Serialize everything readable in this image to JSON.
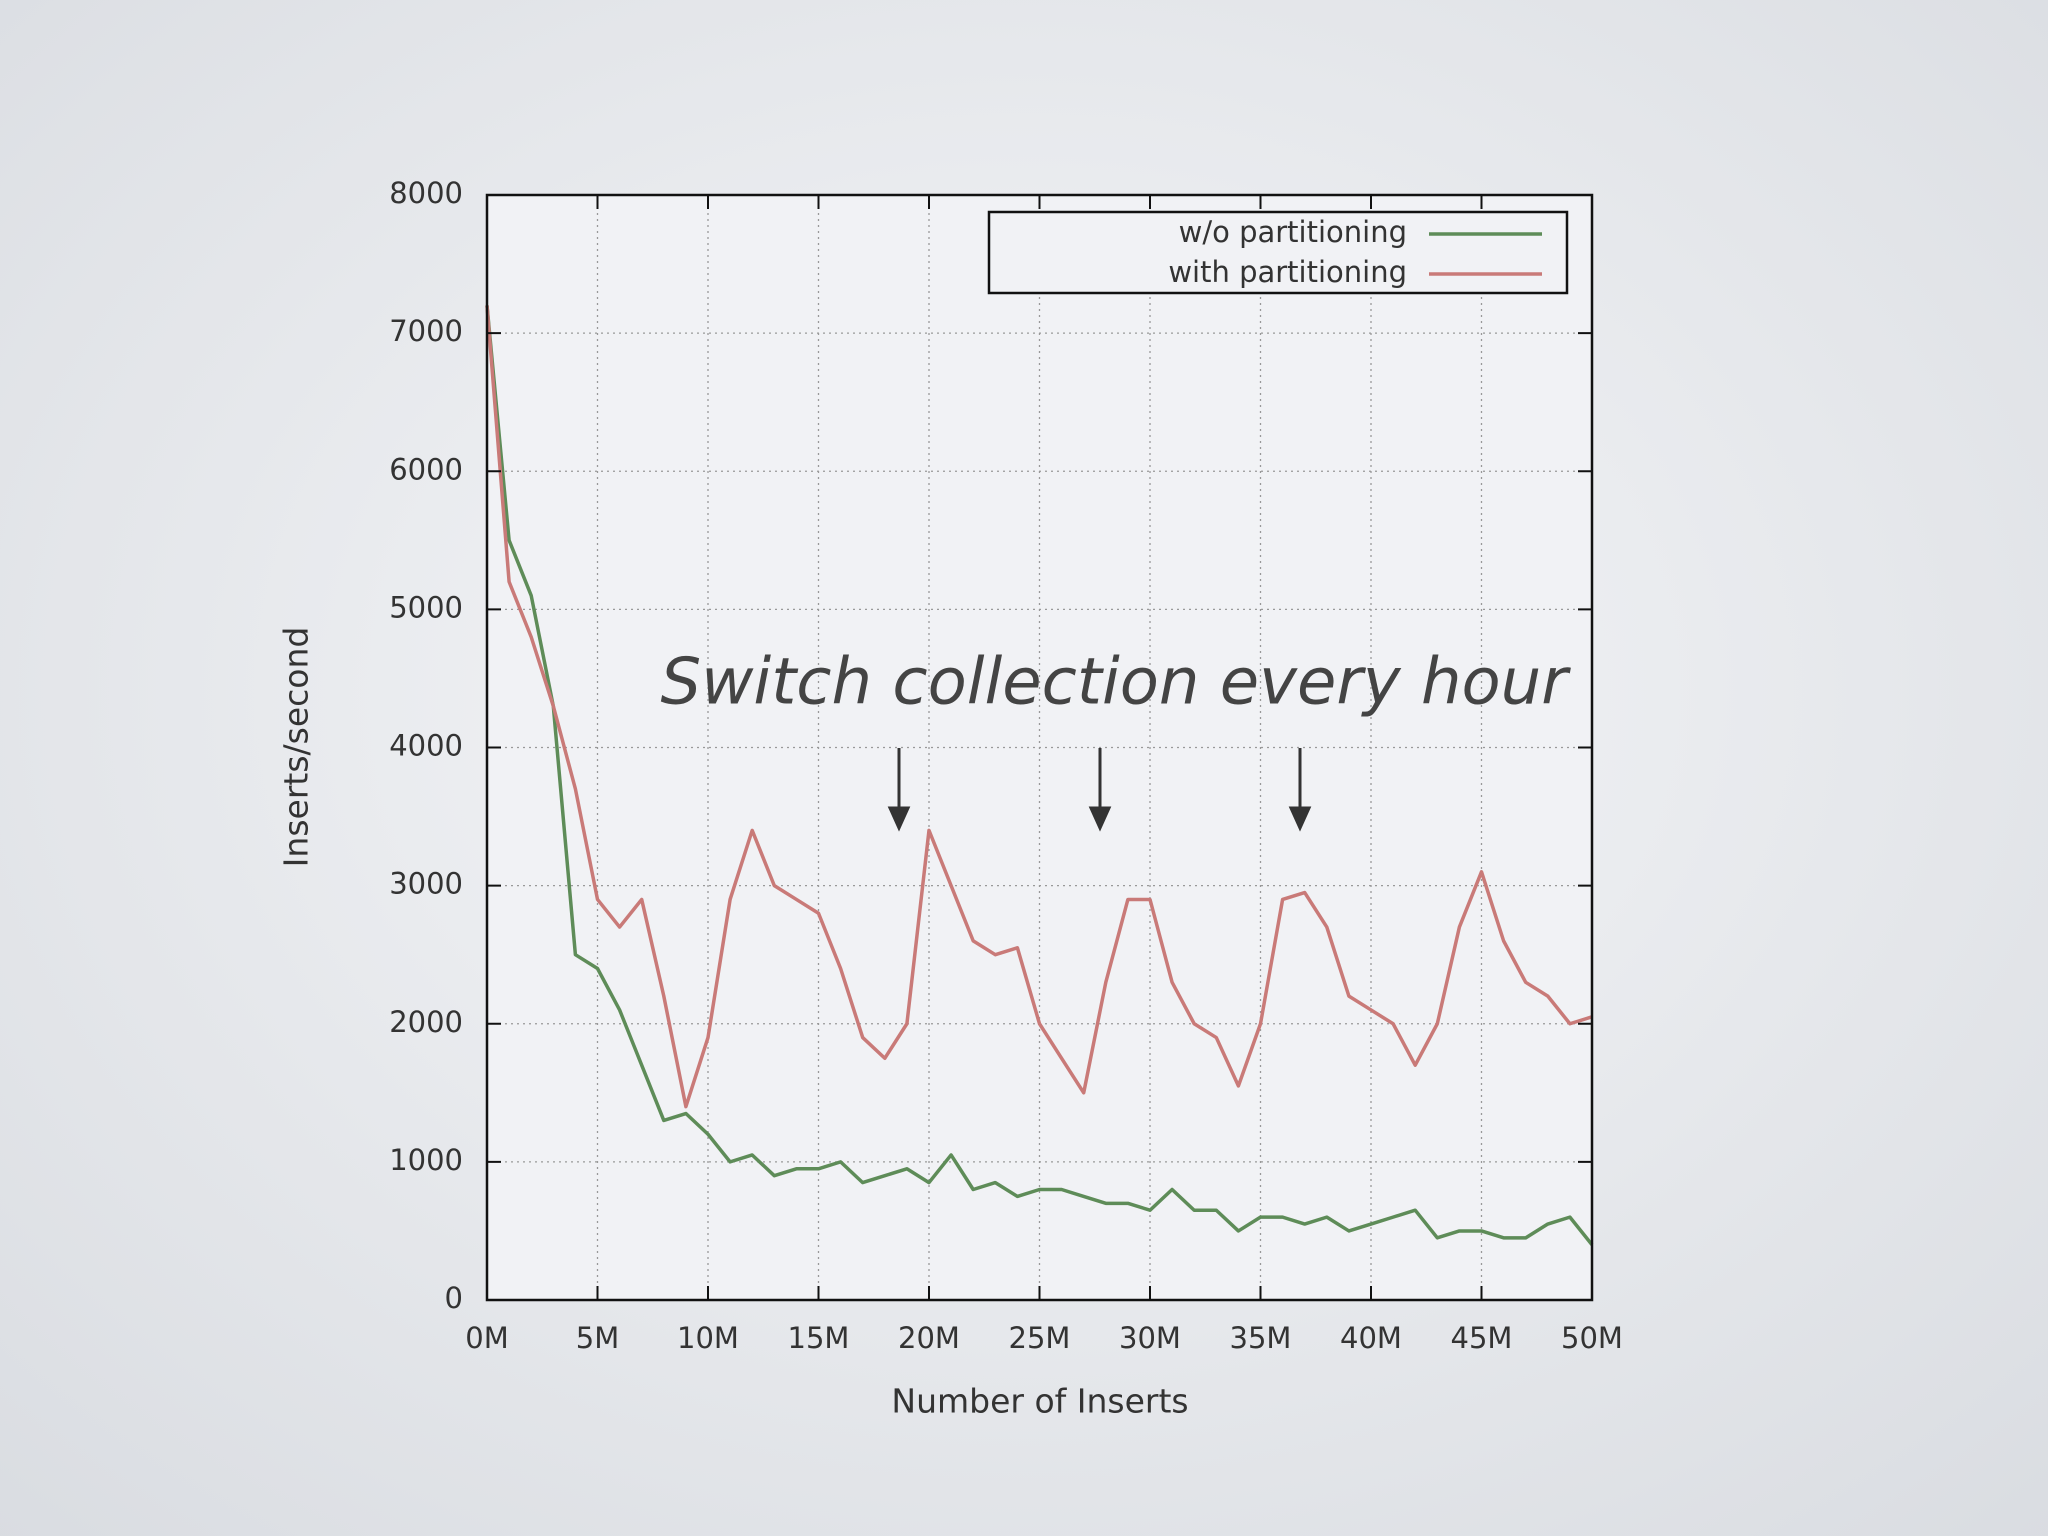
{
  "chart_data": {
    "type": "line",
    "annotation": "Switch collection every hour",
    "x_label": "Number of Inserts",
    "y_label": "Inserts/second",
    "x": [
      0,
      1000000,
      2000000,
      3000000,
      4000000,
      5000000,
      6000000,
      7000000,
      8000000,
      9000000,
      10000000,
      11000000,
      12000000,
      13000000,
      14000000,
      15000000,
      16000000,
      17000000,
      18000000,
      19000000,
      20000000,
      21000000,
      22000000,
      23000000,
      24000000,
      25000000,
      26000000,
      27000000,
      28000000,
      29000000,
      30000000,
      31000000,
      32000000,
      33000000,
      34000000,
      35000000,
      36000000,
      37000000,
      38000000,
      39000000,
      40000000,
      41000000,
      42000000,
      43000000,
      44000000,
      45000000,
      46000000,
      47000000,
      48000000,
      49000000,
      50000000
    ],
    "series": [
      {
        "name": "w/o partitioning",
        "color": "#5e8c58",
        "values": [
          7200,
          5500,
          5100,
          4300,
          2500,
          2400,
          2100,
          1700,
          1300,
          1350,
          1200,
          1000,
          1050,
          900,
          950,
          950,
          1000,
          850,
          900,
          950,
          850,
          1050,
          800,
          850,
          750,
          800,
          800,
          750,
          700,
          700,
          650,
          800,
          650,
          650,
          500,
          600,
          600,
          550,
          600,
          500,
          550,
          600,
          650,
          450,
          500,
          500,
          450,
          450,
          550,
          600,
          400
        ]
      },
      {
        "name": "with partitioning",
        "color": "#c97a78",
        "values": [
          7200,
          5200,
          4800,
          4300,
          3700,
          2900,
          2700,
          2900,
          2200,
          1400,
          1900,
          2900,
          3400,
          3000,
          2900,
          2800,
          2400,
          1900,
          1750,
          2000,
          3400,
          3000,
          2600,
          2500,
          2550,
          2000,
          1750,
          1500,
          2300,
          2900,
          2900,
          2300,
          2000,
          1900,
          1550,
          2000,
          2900,
          2950,
          2700,
          2200,
          2100,
          2000,
          1700,
          2000,
          2700,
          3100,
          2600,
          2300,
          2200,
          2000,
          2050
        ]
      }
    ],
    "xlim": [
      0,
      50000000
    ],
    "xticks": [
      {
        "value": 0,
        "label": "0M"
      },
      {
        "value": 5000000,
        "label": "5M"
      },
      {
        "value": 10000000,
        "label": "10M"
      },
      {
        "value": 15000000,
        "label": "15M"
      },
      {
        "value": 20000000,
        "label": "20M"
      },
      {
        "value": 25000000,
        "label": "25M"
      },
      {
        "value": 30000000,
        "label": "30M"
      },
      {
        "value": 35000000,
        "label": "35M"
      },
      {
        "value": 40000000,
        "label": "40M"
      },
      {
        "value": 45000000,
        "label": "45M"
      },
      {
        "value": 50000000,
        "label": "50M"
      }
    ],
    "ylim": [
      0,
      8000
    ],
    "yticks": [
      0,
      1000,
      2000,
      3000,
      4000,
      5000,
      6000,
      7000,
      8000
    ],
    "grid": true,
    "legend": "top-right"
  }
}
